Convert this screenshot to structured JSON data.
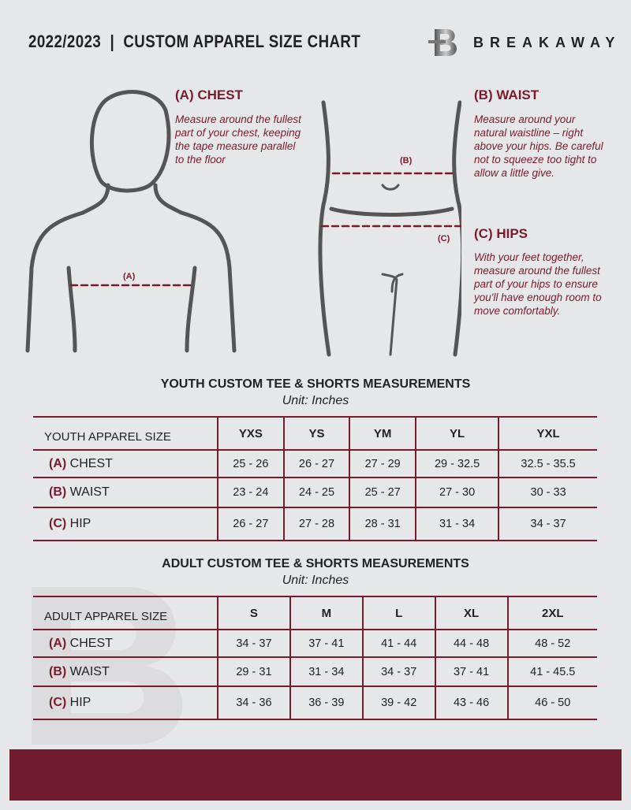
{
  "header": {
    "title": "2022/2023  |  CUSTOM APPAREL SIZE CHART",
    "brand": "BREAKAWAY",
    "logo_letter": "B"
  },
  "measures": {
    "chest": {
      "heading": "(A) CHEST",
      "text": "Measure around the fullest part of your chest, keeping the tape measure parallel to the floor",
      "marker": "(A)"
    },
    "waist": {
      "heading": "(B) WAIST",
      "text": "Measure around your natural waistline – right above your hips. Be careful not to squeeze too tight to allow a little give.",
      "marker": "(B)"
    },
    "hips": {
      "heading": "(C) HIPS",
      "text": "With your feet together, measure around the fullest part of your hips to ensure you'll have enough room to move comfortably.",
      "marker": "(C)"
    }
  },
  "youth": {
    "title": "YOUTH CUSTOM TEE & SHORTS MEASUREMENTS",
    "unit": "Unit: Inches",
    "header": "YOUTH APPAREL SIZE",
    "sizes": [
      "YXS",
      "YS",
      "YM",
      "YL",
      "YXL"
    ],
    "rows": [
      {
        "code": "(A)",
        "name": "CHEST",
        "values": [
          "25 - 26",
          "26 - 27",
          "27 - 29",
          "29 - 32.5",
          "32.5 - 35.5"
        ]
      },
      {
        "code": "(B)",
        "name": "WAIST",
        "values": [
          "23 - 24",
          "24 - 25",
          "25 - 27",
          "27 - 30",
          "30 - 33"
        ]
      },
      {
        "code": "(C)",
        "name": "HIP",
        "values": [
          "26 - 27",
          "27 - 28",
          "28 - 31",
          "31 - 34",
          "34 - 37"
        ]
      }
    ]
  },
  "adult": {
    "title": "ADULT CUSTOM TEE & SHORTS MEASUREMENTS",
    "unit": "Unit: Inches",
    "header": "ADULT APPAREL SIZE",
    "sizes": [
      "S",
      "M",
      "L",
      "XL",
      "2XL"
    ],
    "rows": [
      {
        "code": "(A)",
        "name": "CHEST",
        "values": [
          "34 - 37",
          "37 - 41",
          "41 - 44",
          "44 - 48",
          "48 - 52"
        ]
      },
      {
        "code": "(B)",
        "name": "WAIST",
        "values": [
          "29 - 31",
          "31 - 34",
          "34 - 37",
          "37 - 41",
          "41 - 45.5"
        ]
      },
      {
        "code": "(C)",
        "name": "HIP",
        "values": [
          "34 - 36",
          "36 - 39",
          "39 - 42",
          "43 - 46",
          "46 - 50"
        ]
      }
    ]
  },
  "colors": {
    "accent": "#7a1a2e",
    "background": "#e6e7e9",
    "footer": "#6f1a2e"
  }
}
